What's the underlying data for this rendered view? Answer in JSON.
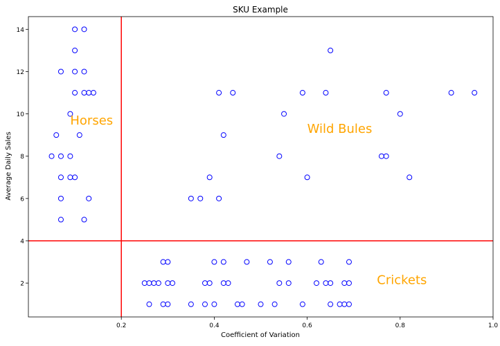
{
  "chart_data": {
    "type": "scatter",
    "title": "SKU Example",
    "xlabel": "Coefficient of Variation",
    "ylabel": "Average Daily Sales",
    "xlim": [
      0.0,
      1.0
    ],
    "ylim": [
      0.4,
      14.6
    ],
    "x_ticks": [
      0.2,
      0.4,
      0.6,
      0.8,
      1.0
    ],
    "x_tick_labels": [
      "0.2",
      "0.4",
      "0.6",
      "0.8",
      "1.0"
    ],
    "y_ticks": [
      2,
      4,
      6,
      8,
      10,
      12,
      14
    ],
    "y_tick_labels": [
      "2",
      "4",
      "6",
      "8",
      "10",
      "12",
      "14"
    ],
    "grid": false,
    "marker": "hollow-circle",
    "marker_color": "#0000ff",
    "reference_lines": {
      "vertical_x": 0.2,
      "horizontal_y": 4,
      "color": "#ff0000"
    },
    "annotations": [
      {
        "text": "Horses",
        "x": 0.09,
        "y": 9.5,
        "color": "#ffa500"
      },
      {
        "text": "Wild Bules",
        "x": 0.6,
        "y": 9.1,
        "color": "#ffa500"
      },
      {
        "text": "Crickets",
        "x": 0.75,
        "y": 1.95,
        "color": "#ffa500"
      }
    ],
    "points": [
      {
        "x": 0.1,
        "y": 14
      },
      {
        "x": 0.12,
        "y": 14
      },
      {
        "x": 0.1,
        "y": 13
      },
      {
        "x": 0.65,
        "y": 13
      },
      {
        "x": 0.07,
        "y": 12
      },
      {
        "x": 0.1,
        "y": 12
      },
      {
        "x": 0.12,
        "y": 12
      },
      {
        "x": 0.1,
        "y": 11
      },
      {
        "x": 0.12,
        "y": 11
      },
      {
        "x": 0.13,
        "y": 11
      },
      {
        "x": 0.14,
        "y": 11
      },
      {
        "x": 0.41,
        "y": 11
      },
      {
        "x": 0.44,
        "y": 11
      },
      {
        "x": 0.59,
        "y": 11
      },
      {
        "x": 0.64,
        "y": 11
      },
      {
        "x": 0.77,
        "y": 11
      },
      {
        "x": 0.91,
        "y": 11
      },
      {
        "x": 0.96,
        "y": 11
      },
      {
        "x": 0.09,
        "y": 10
      },
      {
        "x": 0.55,
        "y": 10
      },
      {
        "x": 0.8,
        "y": 10
      },
      {
        "x": 0.06,
        "y": 9
      },
      {
        "x": 0.11,
        "y": 9
      },
      {
        "x": 0.42,
        "y": 9
      },
      {
        "x": 0.05,
        "y": 8
      },
      {
        "x": 0.07,
        "y": 8
      },
      {
        "x": 0.09,
        "y": 8
      },
      {
        "x": 0.54,
        "y": 8
      },
      {
        "x": 0.76,
        "y": 8
      },
      {
        "x": 0.77,
        "y": 8
      },
      {
        "x": 0.07,
        "y": 7
      },
      {
        "x": 0.09,
        "y": 7
      },
      {
        "x": 0.1,
        "y": 7
      },
      {
        "x": 0.39,
        "y": 7
      },
      {
        "x": 0.6,
        "y": 7
      },
      {
        "x": 0.82,
        "y": 7
      },
      {
        "x": 0.07,
        "y": 6
      },
      {
        "x": 0.13,
        "y": 6
      },
      {
        "x": 0.35,
        "y": 6
      },
      {
        "x": 0.37,
        "y": 6
      },
      {
        "x": 0.41,
        "y": 6
      },
      {
        "x": 0.07,
        "y": 5
      },
      {
        "x": 0.12,
        "y": 5
      },
      {
        "x": 0.29,
        "y": 3
      },
      {
        "x": 0.3,
        "y": 3
      },
      {
        "x": 0.4,
        "y": 3
      },
      {
        "x": 0.42,
        "y": 3
      },
      {
        "x": 0.47,
        "y": 3
      },
      {
        "x": 0.52,
        "y": 3
      },
      {
        "x": 0.56,
        "y": 3
      },
      {
        "x": 0.63,
        "y": 3
      },
      {
        "x": 0.69,
        "y": 3
      },
      {
        "x": 0.25,
        "y": 2
      },
      {
        "x": 0.26,
        "y": 2
      },
      {
        "x": 0.27,
        "y": 2
      },
      {
        "x": 0.28,
        "y": 2
      },
      {
        "x": 0.3,
        "y": 2
      },
      {
        "x": 0.31,
        "y": 2
      },
      {
        "x": 0.38,
        "y": 2
      },
      {
        "x": 0.39,
        "y": 2
      },
      {
        "x": 0.42,
        "y": 2
      },
      {
        "x": 0.43,
        "y": 2
      },
      {
        "x": 0.54,
        "y": 2
      },
      {
        "x": 0.56,
        "y": 2
      },
      {
        "x": 0.62,
        "y": 2
      },
      {
        "x": 0.64,
        "y": 2
      },
      {
        "x": 0.65,
        "y": 2
      },
      {
        "x": 0.68,
        "y": 2
      },
      {
        "x": 0.69,
        "y": 2
      },
      {
        "x": 0.26,
        "y": 1
      },
      {
        "x": 0.29,
        "y": 1
      },
      {
        "x": 0.3,
        "y": 1
      },
      {
        "x": 0.35,
        "y": 1
      },
      {
        "x": 0.38,
        "y": 1
      },
      {
        "x": 0.4,
        "y": 1
      },
      {
        "x": 0.45,
        "y": 1
      },
      {
        "x": 0.46,
        "y": 1
      },
      {
        "x": 0.5,
        "y": 1
      },
      {
        "x": 0.53,
        "y": 1
      },
      {
        "x": 0.59,
        "y": 1
      },
      {
        "x": 0.65,
        "y": 1
      },
      {
        "x": 0.67,
        "y": 1
      },
      {
        "x": 0.68,
        "y": 1
      },
      {
        "x": 0.69,
        "y": 1
      }
    ]
  }
}
